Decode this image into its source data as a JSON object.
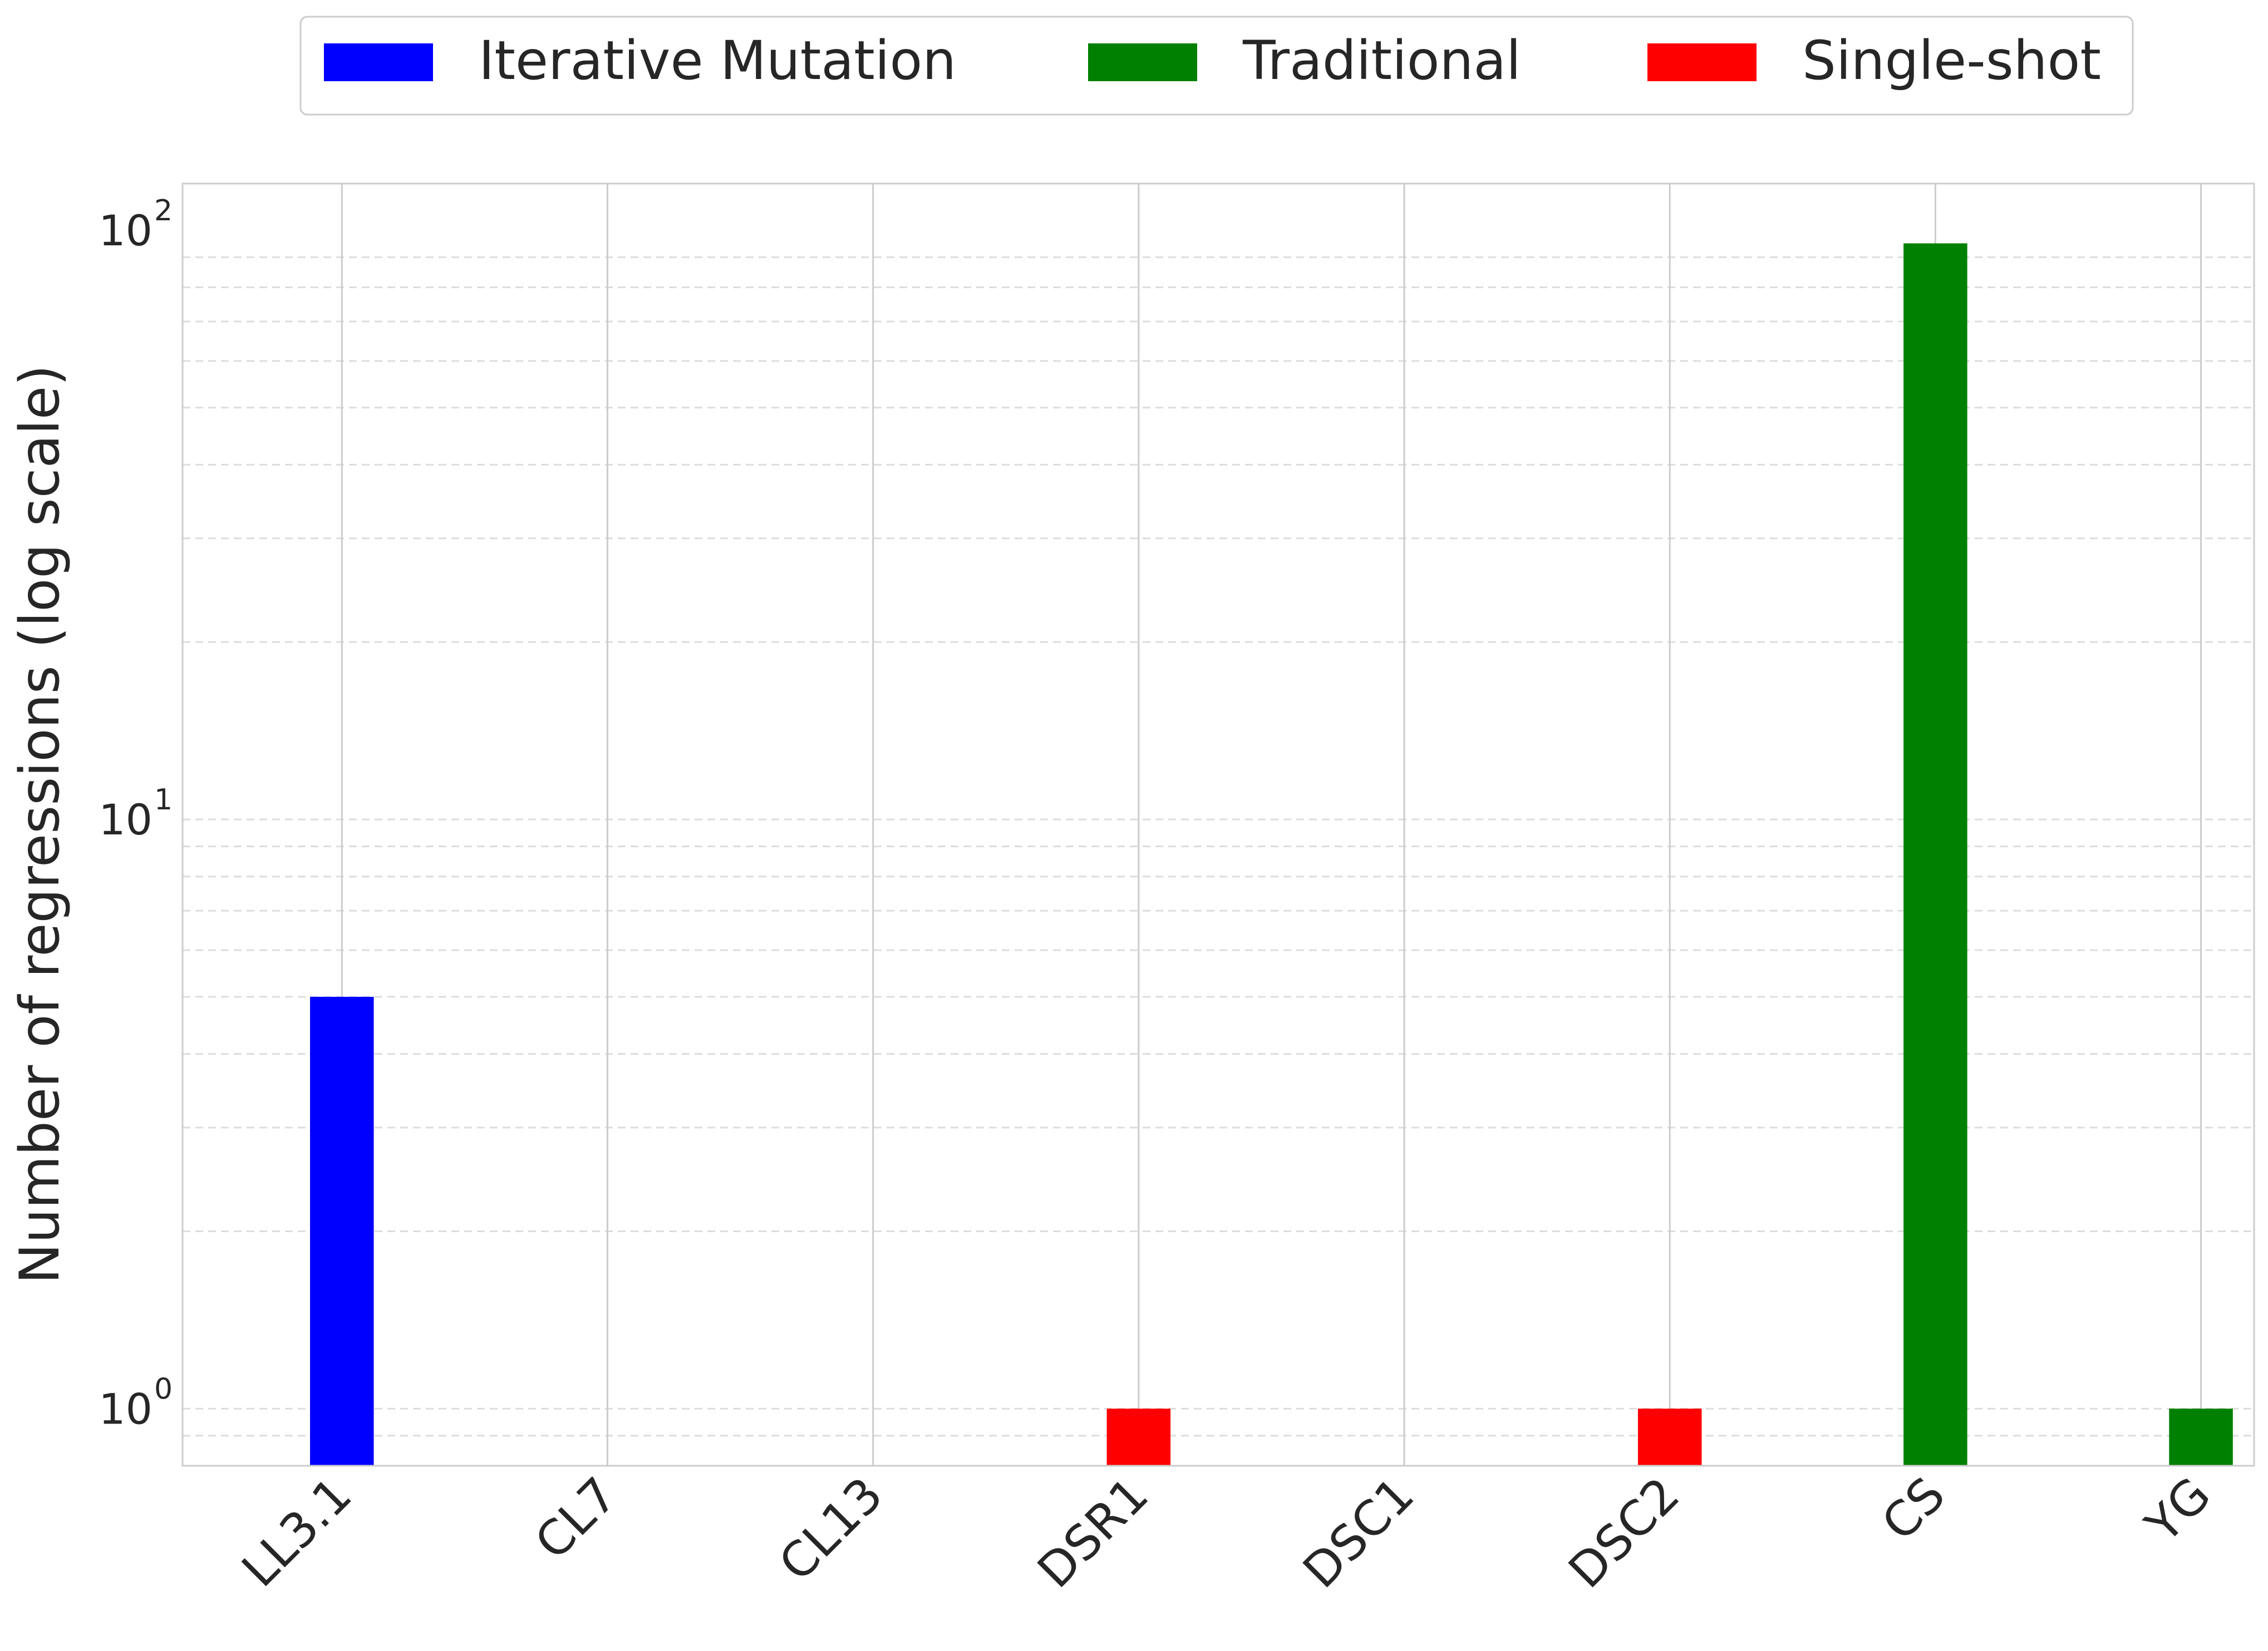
{
  "chart_data": {
    "type": "bar",
    "title": "",
    "xlabel": "",
    "ylabel": "Number of regressions (log scale)",
    "yscale": "log",
    "ylim": [
      0.8,
      120
    ],
    "grid": true,
    "legend_position": "top-center",
    "categories": [
      "LL3.1",
      "CL7",
      "CL13",
      "DSR1",
      "DSC1",
      "DSC2",
      "CS",
      "YG"
    ],
    "y_ticks": [
      {
        "value": 1,
        "base": "10",
        "exp": "0"
      },
      {
        "value": 10,
        "base": "10",
        "exp": "1"
      },
      {
        "value": 100,
        "base": "10",
        "exp": "2"
      }
    ],
    "series": [
      {
        "name": "Iterative Mutation",
        "color": "#0000ff",
        "values": [
          5,
          null,
          null,
          null,
          null,
          null,
          null,
          null
        ]
      },
      {
        "name": "Traditional",
        "color": "#008000",
        "values": [
          null,
          null,
          null,
          null,
          null,
          null,
          95,
          1
        ]
      },
      {
        "name": "Single-shot",
        "color": "#ff0000",
        "values": [
          null,
          null,
          null,
          1,
          null,
          1,
          null,
          null
        ]
      }
    ]
  }
}
